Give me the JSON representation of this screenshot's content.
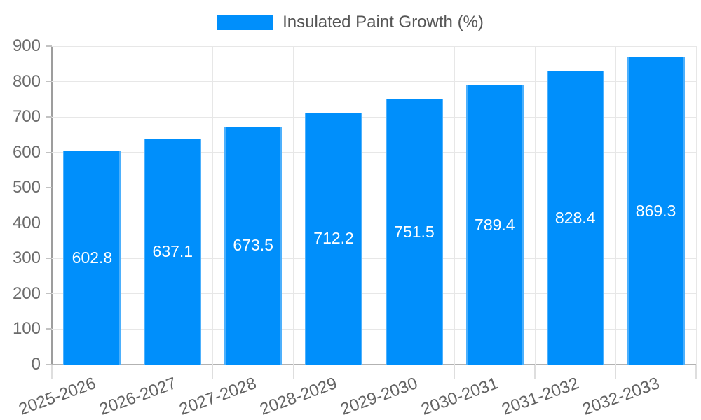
{
  "chart_data": {
    "type": "bar",
    "title": "",
    "legend_entries": [
      "Insulated Paint Growth (%)"
    ],
    "legend_position": "top",
    "categories": [
      "2025-2026",
      "2026-2027",
      "2027-2028",
      "2028-2029",
      "2029-2030",
      "2030-2031",
      "2031-2032",
      "2032-2033"
    ],
    "series": [
      {
        "name": "Insulated Paint Growth (%)",
        "values": [
          602.8,
          637.1,
          673.5,
          712.2,
          751.5,
          789.4,
          828.4,
          869.3
        ]
      }
    ],
    "value_labels": [
      "602.8",
      "637.1",
      "673.5",
      "712.2",
      "751.5",
      "789.4",
      "828.4",
      "869.3"
    ],
    "xlabel": "",
    "ylabel": "",
    "ylim": [
      0,
      900
    ],
    "y_ticks": [
      0,
      100,
      200,
      300,
      400,
      500,
      600,
      700,
      800,
      900
    ],
    "grid": "on",
    "x_label_rotation_deg": -20,
    "bar_color": "#008FFB",
    "value_label_color": "#FFFFFF",
    "axis_text_color": "#6B6B6B",
    "legend_text_color": "#565656",
    "gridline_color": "#E7E7E7"
  }
}
